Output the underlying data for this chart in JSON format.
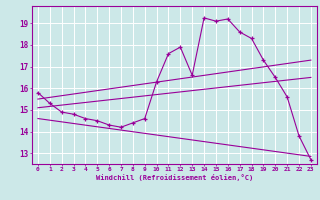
{
  "xlabel": "Windchill (Refroidissement éolien,°C)",
  "bg_color": "#cce8e8",
  "line_color": "#990099",
  "grid_color": "#ffffff",
  "xlim": [
    -0.5,
    23.5
  ],
  "ylim": [
    12.5,
    19.8
  ],
  "yticks": [
    13,
    14,
    15,
    16,
    17,
    18,
    19
  ],
  "xticks": [
    0,
    1,
    2,
    3,
    4,
    5,
    6,
    7,
    8,
    9,
    10,
    11,
    12,
    13,
    14,
    15,
    16,
    17,
    18,
    19,
    20,
    21,
    22,
    23
  ],
  "series1_x": [
    0,
    1,
    2,
    3,
    4,
    5,
    6,
    7,
    8,
    9,
    10,
    11,
    12,
    13,
    14,
    15,
    16,
    17,
    18,
    19,
    20,
    21,
    22,
    23
  ],
  "series1_y": [
    15.8,
    15.3,
    14.9,
    14.8,
    14.6,
    14.5,
    14.3,
    14.2,
    14.4,
    14.6,
    16.3,
    17.6,
    17.9,
    16.6,
    19.25,
    19.1,
    19.2,
    18.6,
    18.3,
    17.3,
    16.5,
    15.6,
    13.8,
    12.7
  ],
  "series2_x": [
    0,
    23
  ],
  "series2_y": [
    15.5,
    17.3
  ],
  "series3_x": [
    0,
    23
  ],
  "series3_y": [
    15.1,
    16.5
  ],
  "series4_x": [
    0,
    23
  ],
  "series4_y": [
    14.6,
    12.85
  ]
}
